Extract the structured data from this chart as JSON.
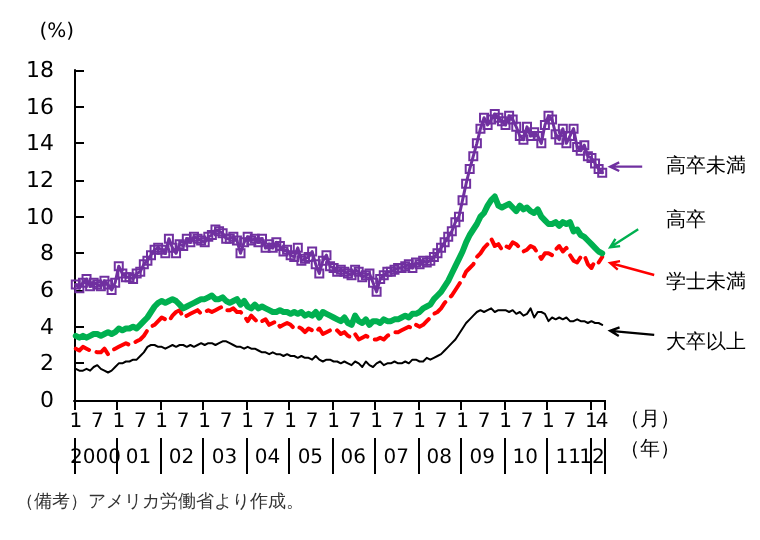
{
  "chart_data": {
    "type": "line",
    "ylabel": "(%)",
    "xlabel": "（月）",
    "categories": [
      "1",
      null,
      null,
      null,
      null,
      null,
      "7",
      null,
      null,
      null,
      null,
      null,
      "1",
      null,
      null,
      null,
      null,
      null,
      "7",
      null,
      null,
      null,
      null,
      null,
      "1",
      null,
      null,
      null,
      null,
      null,
      "7",
      null,
      null,
      null,
      null,
      null,
      "1",
      null,
      null,
      null,
      null,
      null,
      "7",
      null,
      null,
      null,
      null,
      null,
      "1",
      null,
      null,
      null,
      null,
      null,
      "7",
      null,
      null,
      null,
      null,
      null,
      "1",
      null,
      null,
      null,
      null,
      null,
      "7",
      null,
      null,
      null,
      null,
      null,
      "1",
      null,
      null,
      null,
      null,
      null,
      "7",
      null,
      null,
      null,
      null,
      null,
      "1",
      null,
      null,
      null,
      null,
      null,
      "7",
      null,
      null,
      null,
      null,
      null,
      "1",
      null,
      null,
      null,
      null,
      null,
      "7",
      null,
      null,
      null,
      null,
      null,
      "1",
      null,
      null,
      null,
      null,
      null,
      "7",
      null,
      null,
      null,
      null,
      null,
      "1",
      null,
      null,
      null,
      null,
      null,
      "7",
      null,
      null,
      null,
      null,
      null,
      "1",
      null,
      null,
      null,
      null,
      null,
      "7",
      null,
      null,
      null,
      null,
      null,
      "1",
      null,
      null,
      "4"
    ],
    "series": [
      {
        "name": "高卒未満",
        "color": "#7030a0",
        "marker": "square",
        "values": [
          6.3,
          6.1,
          6.4,
          6.6,
          6.2,
          6.4,
          6.3,
          6.2,
          6.5,
          6.3,
          6.0,
          6.4,
          7.3,
          6.9,
          6.7,
          6.7,
          6.6,
          6.9,
          7.0,
          7.4,
          7.6,
          7.9,
          8.2,
          8.3,
          8.2,
          8.0,
          8.8,
          8.3,
          8.0,
          8.5,
          8.4,
          8.8,
          8.6,
          8.9,
          8.8,
          8.7,
          8.6,
          8.9,
          9.0,
          9.3,
          9.2,
          9.1,
          8.8,
          8.8,
          8.9,
          8.7,
          8.0,
          8.6,
          8.9,
          8.7,
          8.8,
          8.6,
          8.8,
          8.3,
          8.5,
          8.3,
          8.6,
          8.4,
          8.1,
          8.2,
          7.9,
          7.8,
          8.3,
          7.6,
          7.7,
          7.8,
          8.1,
          7.4,
          6.9,
          7.6,
          7.9,
          7.3,
          7.2,
          7.0,
          7.1,
          7.0,
          6.9,
          6.8,
          7.1,
          7.0,
          6.7,
          6.8,
          6.9,
          6.4,
          5.9,
          6.6,
          6.8,
          7.0,
          7.0,
          7.1,
          7.2,
          7.2,
          7.3,
          7.4,
          7.2,
          7.5,
          7.4,
          7.6,
          7.5,
          7.6,
          7.8,
          8.0,
          8.3,
          8.6,
          8.9,
          9.2,
          9.7,
          10.0,
          10.9,
          11.8,
          12.6,
          13.3,
          14.0,
          14.8,
          15.4,
          15.0,
          15.3,
          15.6,
          15.4,
          15.2,
          15.0,
          15.5,
          15.3,
          14.9,
          14.4,
          14.2,
          14.9,
          14.4,
          14.6,
          14.4,
          14.0,
          15.0,
          15.5,
          15.3,
          14.5,
          14.2,
          14.8,
          14.0,
          14.4,
          14.8,
          13.8,
          13.6,
          13.9,
          13.3,
          13.2,
          12.9,
          12.6,
          12.4
        ]
      },
      {
        "name": "高卒",
        "color": "#00b050",
        "values": [
          3.5,
          3.4,
          3.5,
          3.4,
          3.5,
          3.6,
          3.6,
          3.5,
          3.6,
          3.7,
          3.6,
          3.7,
          3.9,
          3.8,
          3.9,
          3.9,
          4.0,
          3.9,
          4.1,
          4.3,
          4.5,
          4.8,
          5.1,
          5.3,
          5.4,
          5.3,
          5.4,
          5.5,
          5.4,
          5.2,
          5.0,
          5.1,
          5.2,
          5.3,
          5.4,
          5.5,
          5.5,
          5.6,
          5.7,
          5.5,
          5.5,
          5.6,
          5.4,
          5.3,
          5.4,
          5.5,
          5.2,
          5.4,
          5.1,
          5.0,
          5.2,
          5.0,
          5.1,
          5.0,
          4.9,
          4.8,
          4.8,
          4.9,
          4.8,
          4.8,
          4.7,
          4.8,
          4.7,
          4.8,
          4.6,
          4.7,
          4.6,
          4.8,
          4.5,
          4.8,
          4.7,
          4.6,
          4.5,
          4.4,
          4.3,
          4.5,
          4.2,
          4.1,
          4.6,
          4.3,
          4.2,
          4.4,
          4.1,
          4.3,
          4.3,
          4.2,
          4.4,
          4.3,
          4.3,
          4.4,
          4.4,
          4.5,
          4.6,
          4.5,
          4.7,
          4.7,
          4.8,
          5.0,
          5.1,
          5.2,
          5.5,
          5.7,
          5.9,
          6.2,
          6.5,
          6.9,
          7.3,
          7.7,
          8.1,
          8.6,
          9.0,
          9.3,
          9.6,
          10.0,
          10.2,
          10.6,
          10.9,
          11.1,
          10.6,
          10.5,
          10.6,
          10.7,
          10.5,
          10.3,
          10.6,
          10.4,
          10.5,
          10.3,
          10.2,
          10.4,
          10.0,
          9.8,
          9.6,
          9.6,
          9.7,
          9.5,
          9.7,
          9.6,
          9.7,
          9.2,
          9.3,
          9.0,
          8.9,
          8.7,
          8.5,
          8.3,
          8.1,
          8.0
        ]
      },
      {
        "name": "学士未満",
        "color": "#ff0000",
        "line_style": "dashed",
        "values": [
          2.8,
          2.7,
          2.9,
          2.8,
          2.7,
          2.7,
          2.6,
          2.6,
          2.8,
          2.5,
          2.7,
          2.8,
          2.9,
          3.0,
          3.1,
          3.0,
          3.1,
          3.2,
          3.3,
          3.5,
          3.8,
          4.0,
          4.1,
          4.3,
          4.5,
          4.4,
          4.3,
          4.6,
          4.8,
          4.9,
          4.5,
          4.6,
          4.7,
          4.8,
          4.9,
          4.7,
          4.8,
          4.9,
          4.8,
          4.9,
          5.0,
          5.1,
          4.9,
          4.9,
          5.0,
          4.8,
          4.8,
          4.6,
          4.3,
          4.6,
          4.4,
          4.2,
          4.3,
          4.4,
          4.1,
          4.2,
          4.3,
          4.0,
          4.1,
          4.2,
          4.1,
          3.9,
          4.0,
          3.9,
          3.7,
          3.9,
          3.8,
          3.7,
          3.9,
          3.6,
          3.7,
          3.8,
          3.7,
          3.8,
          3.6,
          3.7,
          3.5,
          3.4,
          3.6,
          3.3,
          3.4,
          3.5,
          3.4,
          3.3,
          3.3,
          3.4,
          3.3,
          3.5,
          3.6,
          3.7,
          3.7,
          3.8,
          3.9,
          4.0,
          3.9,
          4.1,
          4.0,
          4.1,
          4.3,
          4.5,
          4.7,
          4.8,
          5.0,
          5.3,
          5.5,
          5.7,
          6.0,
          6.3,
          6.6,
          7.0,
          7.2,
          7.4,
          7.8,
          8.0,
          8.3,
          8.5,
          8.8,
          8.4,
          8.5,
          8.2,
          8.4,
          8.3,
          8.6,
          8.5,
          8.3,
          8.1,
          8.2,
          8.4,
          8.3,
          8.0,
          7.7,
          8.0,
          8.0,
          7.9,
          8.2,
          8.4,
          8.1,
          8.3,
          7.9,
          7.6,
          7.5,
          7.8,
          7.9,
          7.4,
          7.2,
          7.6,
          7.5,
          7.8
        ]
      },
      {
        "name": "大卒以上",
        "color": "#000000",
        "values": [
          1.7,
          1.6,
          1.6,
          1.7,
          1.6,
          1.8,
          1.9,
          1.7,
          1.6,
          1.5,
          1.6,
          1.8,
          2.0,
          2.0,
          2.1,
          2.1,
          2.2,
          2.2,
          2.4,
          2.6,
          2.9,
          3.0,
          3.0,
          2.9,
          2.9,
          2.8,
          2.9,
          3.0,
          2.9,
          3.0,
          3.0,
          2.9,
          3.0,
          2.9,
          3.0,
          3.1,
          3.0,
          3.1,
          3.1,
          3.0,
          3.1,
          3.2,
          3.2,
          3.1,
          3.0,
          2.9,
          2.9,
          2.8,
          2.9,
          2.8,
          2.8,
          2.7,
          2.6,
          2.6,
          2.5,
          2.6,
          2.5,
          2.5,
          2.4,
          2.5,
          2.4,
          2.4,
          2.3,
          2.4,
          2.3,
          2.3,
          2.2,
          2.4,
          2.2,
          2.1,
          2.2,
          2.2,
          2.1,
          2.1,
          2.0,
          2.1,
          2.0,
          1.9,
          2.1,
          2.0,
          1.8,
          2.1,
          1.9,
          1.8,
          2.0,
          2.1,
          1.9,
          2.0,
          2.0,
          2.1,
          2.0,
          2.0,
          2.1,
          2.0,
          2.2,
          2.2,
          2.1,
          2.1,
          2.3,
          2.2,
          2.3,
          2.4,
          2.5,
          2.7,
          2.9,
          3.1,
          3.3,
          3.6,
          3.9,
          4.2,
          4.4,
          4.6,
          4.8,
          4.9,
          4.8,
          4.9,
          5.0,
          4.8,
          4.9,
          4.9,
          4.9,
          4.8,
          4.9,
          4.7,
          4.8,
          4.6,
          4.7,
          5.0,
          4.5,
          4.8,
          4.8,
          4.7,
          4.3,
          4.5,
          4.4,
          4.5,
          4.4,
          4.5,
          4.3,
          4.3,
          4.4,
          4.3,
          4.3,
          4.2,
          4.3,
          4.2,
          4.2,
          4.1
        ]
      }
    ],
    "ylim": [
      0,
      18
    ],
    "yticks": [
      0,
      2,
      4,
      6,
      8,
      10,
      12,
      14,
      16,
      18
    ],
    "grid": false,
    "legend": "right",
    "annotations": [
      "2000",
      "01",
      "02",
      "03",
      "04",
      "05",
      "06",
      "07",
      "08",
      "09",
      "10",
      "11",
      "12",
      "（年）",
      "（備考）アメリカ労働省より作成。"
    ]
  }
}
